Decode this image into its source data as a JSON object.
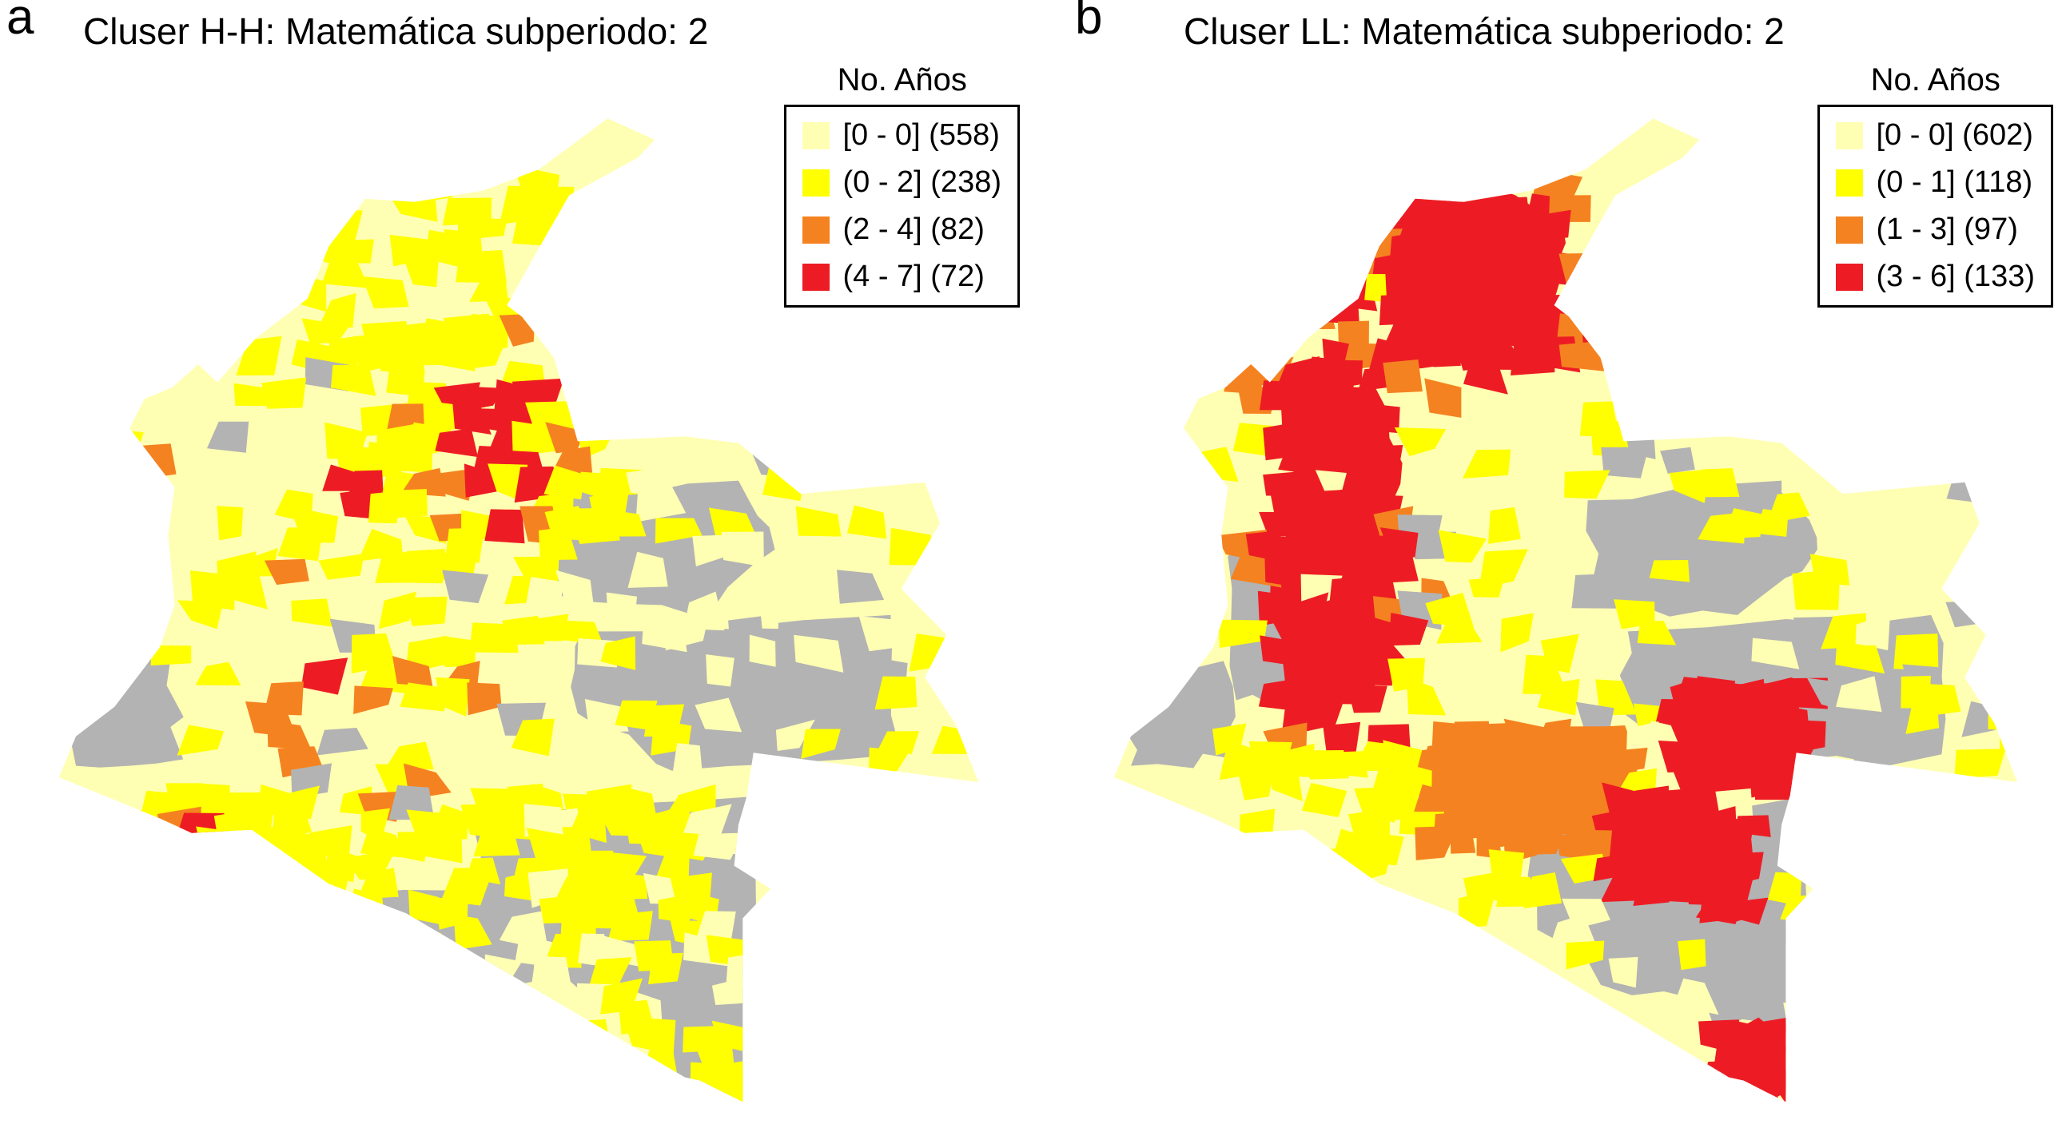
{
  "figure": {
    "type": "choropleth-map-figure",
    "background_color": "#FFFFFF",
    "no_data_color": "#B3B3B3",
    "panels": [
      {
        "panel_label": "a",
        "title": "Cluser H-H: Matemática subperiodo: 2",
        "legend": {
          "title": "No. Años",
          "entries": [
            {
              "label": "[0 - 0] (558)",
              "bin": "[0 - 0]",
              "count": 558,
              "color": "#FFFFB3"
            },
            {
              "label": "(0 - 2] (238)",
              "bin": "(0 - 2]",
              "count": 238,
              "color": "#FFFF00"
            },
            {
              "label": "(2 - 4] (82)",
              "bin": "(2 - 4]",
              "count": 82,
              "color": "#F58220"
            },
            {
              "label": "(4 - 7] (72)",
              "bin": "(4 - 7]",
              "count": 72,
              "color": "#ED1C24"
            }
          ]
        }
      },
      {
        "panel_label": "b",
        "title": "Cluser LL: Matemática subperiodo: 2",
        "legend": {
          "title": "No. Años",
          "entries": [
            {
              "label": "[0 - 0] (602)",
              "bin": "[0 - 0]",
              "count": 602,
              "color": "#FFFFB3"
            },
            {
              "label": "(0 - 1] (118)",
              "bin": "(0 - 1]",
              "count": 118,
              "color": "#FFFF00"
            },
            {
              "label": "(1 - 3] (97)",
              "bin": "(1 - 3]",
              "count": 97,
              "color": "#F58220"
            },
            {
              "label": "(3 - 6] (133)",
              "bin": "(3 - 6]",
              "count": 133,
              "color": "#ED1C24"
            }
          ]
        }
      }
    ]
  },
  "chart_data": [
    {
      "type": "choropleth",
      "region": "Colombia (municipalities)",
      "title": "Cluser H-H: Matemática subperiodo: 2",
      "legend_title": "No. Años",
      "bins": [
        "[0 - 0]",
        "(0 - 2]",
        "(2 - 4]",
        "(4 - 7]"
      ],
      "counts": [
        558,
        238,
        82,
        72
      ],
      "colors": [
        "#FFFFB3",
        "#FFFF00",
        "#F58220",
        "#ED1C24"
      ],
      "no_data_color": "#B3B3B3",
      "legend_position": "top-right"
    },
    {
      "type": "choropleth",
      "region": "Colombia (municipalities)",
      "title": "Cluser LL: Matemática subperiodo: 2",
      "legend_title": "No. Años",
      "bins": [
        "[0 - 0]",
        "(0 - 1]",
        "(1 - 3]",
        "(3 - 6]"
      ],
      "counts": [
        602,
        118,
        97,
        133
      ],
      "colors": [
        "#FFFFB3",
        "#FFFF00",
        "#F58220",
        "#ED1C24"
      ],
      "no_data_color": "#B3B3B3",
      "legend_position": "top-right"
    }
  ]
}
